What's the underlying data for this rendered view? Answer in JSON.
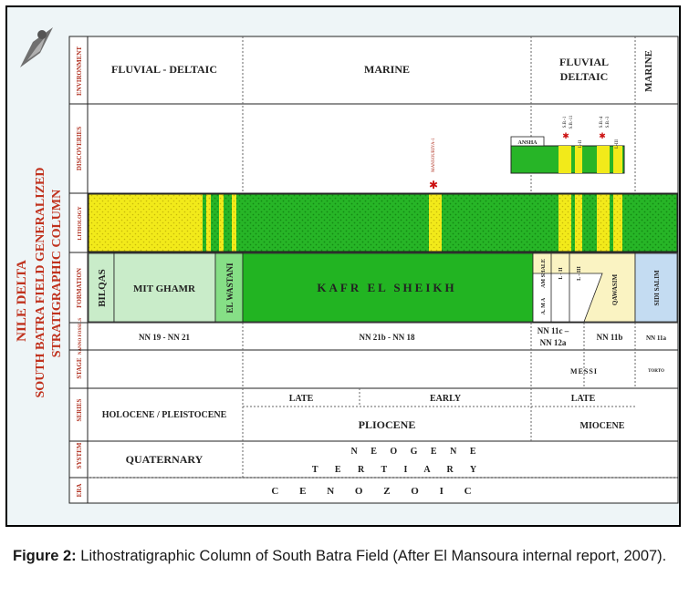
{
  "vertical_title": {
    "line1": "NILE DELTA",
    "line2": "SOUTH BATRA FIELD GENERALIZED",
    "line3": "STRATIGRAPHIC COLUMN"
  },
  "row_labels": {
    "environment": "ENVIRONMENT",
    "discoveries": "DISCOVERIES",
    "lithology": "LITHOLOGY",
    "formation": "FORMATION",
    "nannofossils": "NANNO FOSSILS",
    "stage": "STAGE",
    "series": "SERIES",
    "system": "SYSTEM",
    "era": "ERA"
  },
  "environment": {
    "fluvial_deltaic_left": "FLUVIAL - DELTAIC",
    "marine_center": "MARINE",
    "fluvial_right_line1": "FLUVIAL",
    "fluvial_right_line2": "DELTAIC",
    "marine_right": "MARINE"
  },
  "discoveries": {
    "well": "MANSOURIYA-1",
    "field_small_1": "A",
    "field_small_2": "N",
    "field_small_3": "S",
    "field_small_4": "H",
    "field_small_5": "A",
    "label_sb1": "S.B.-1",
    "label_sb11": "S.B.-11",
    "label_sb4": "S.B.-4",
    "label_sb3": "S.B.-3",
    "label_l2": "L-II",
    "label_l3": "L-III"
  },
  "formation": {
    "bilqas": "BILQAS",
    "mit_ghamr": "MIT GHAMR",
    "el_wastani": "EL WASTANI",
    "kafr_el_sheikh": "KAFR EL SHEIKH",
    "abu_madi_shale": "AM SHALE",
    "abu_madi": "A. M A",
    "l2": "L - II",
    "l3": "L - III",
    "qawasim": "QAWASIM",
    "sidi_salim": "SIDI SALIM"
  },
  "nannofossils": {
    "nn1": "NN 19 - NN 21",
    "nn2": "NN 21b - NN 18",
    "nn3_line1": "NN 11c –",
    "nn3_line2": "NN 12a",
    "nn4": "NN 11b",
    "nn5": "NN 11a"
  },
  "stage": {
    "messinian": "MESSI",
    "tortonian": "TORTO"
  },
  "series": {
    "late": "LATE",
    "early": "EARLY",
    "late_miocene": "LATE",
    "holocene": "HOLOCENE / PLEISTOCENE",
    "pliocene": "PLIOCENE",
    "miocene": "MIOCENE"
  },
  "system": {
    "quaternary": "QUATERNARY",
    "neogene": "N E O G E N E",
    "tertiary": "T E R T I A R Y"
  },
  "era": {
    "cenozoic": "C E N O Z O I C"
  },
  "caption": {
    "label": "Figure 2:",
    "text": " Lithostratigraphic Column of South Batra Field (After El Mansoura internal report, 2007)."
  },
  "colors": {
    "green_dark": "#22b422",
    "yellow": "#f4ee22",
    "light_green": "#c9ecc9",
    "light_yellow": "#faf3c2",
    "light_blue": "#c4dcf2",
    "star_red": "#cc1111"
  }
}
